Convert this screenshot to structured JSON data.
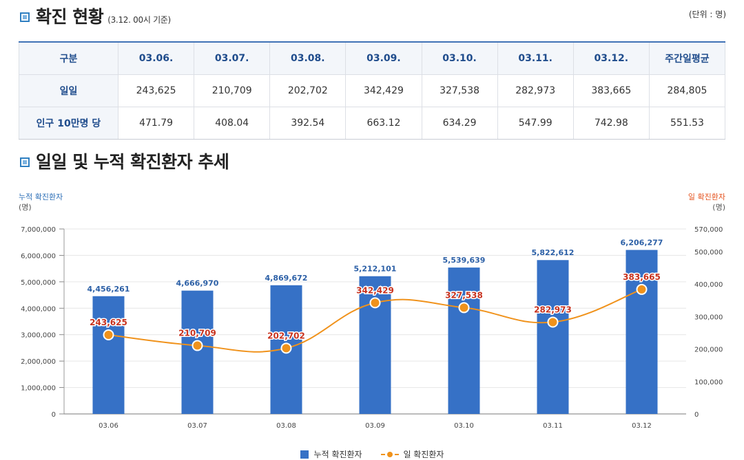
{
  "section1": {
    "title": "확진 현황",
    "note": "(3.12. 00시 기준)",
    "unit": "(단위 : 명)"
  },
  "table": {
    "headers": [
      "구분",
      "03.06.",
      "03.07.",
      "03.08.",
      "03.09.",
      "03.10.",
      "03.11.",
      "03.12.",
      "주간일평균"
    ],
    "rows": [
      {
        "label": "일일",
        "values": [
          "243,625",
          "210,709",
          "202,702",
          "342,429",
          "327,538",
          "282,973",
          "383,665",
          "284,805"
        ]
      },
      {
        "label": "인구 10만명 당",
        "values": [
          "471.79",
          "408.04",
          "392.54",
          "663.12",
          "634.29",
          "547.99",
          "742.98",
          "551.53"
        ]
      }
    ]
  },
  "section2": {
    "title": "일일 및 누적 확진환자 추세"
  },
  "chart_data": {
    "type": "bar",
    "categories": [
      "03.06",
      "03.07",
      "03.08",
      "03.09",
      "03.10",
      "03.11",
      "03.12"
    ],
    "left_axis": {
      "label": "누적 확진환자",
      "unit": "(명)",
      "min": 0,
      "max": 7000000,
      "ticks": [
        0,
        1000000,
        2000000,
        3000000,
        4000000,
        5000000,
        6000000,
        7000000
      ],
      "tick_labels": [
        "0",
        "1,000,000",
        "2,000,000",
        "3,000,000",
        "4,000,000",
        "5,000,000",
        "6,000,000",
        "7,000,000"
      ]
    },
    "right_axis": {
      "label": "일 확진환자",
      "unit": "(명)",
      "min": 0,
      "max": 570000,
      "ticks": [
        0,
        100000,
        200000,
        300000,
        400000,
        500000,
        570000
      ],
      "tick_labels": [
        "0",
        "100,000",
        "200,000",
        "300,000",
        "400,000",
        "500,000",
        "570,000"
      ]
    },
    "series": [
      {
        "name": "누적 확진환자",
        "type": "bar",
        "axis": "left",
        "color": "#3671c6",
        "values": [
          4456261,
          4666970,
          4869672,
          5212101,
          5539639,
          5822612,
          6206277
        ],
        "labels": [
          "4,456,261",
          "4,666,970",
          "4,869,672",
          "5,212,101",
          "5,539,639",
          "5,822,612",
          "6,206,277"
        ]
      },
      {
        "name": "일 확진환자",
        "type": "line",
        "axis": "right",
        "color": "#f0921b",
        "label_color": "#c8321e",
        "values": [
          243625,
          210709,
          202702,
          342429,
          327538,
          282973,
          383665
        ],
        "labels": [
          "243,625",
          "210,709",
          "202,702",
          "342,429",
          "327,538",
          "282,973",
          "383,665"
        ]
      }
    ],
    "grid": true,
    "legend": "bottom-center"
  }
}
